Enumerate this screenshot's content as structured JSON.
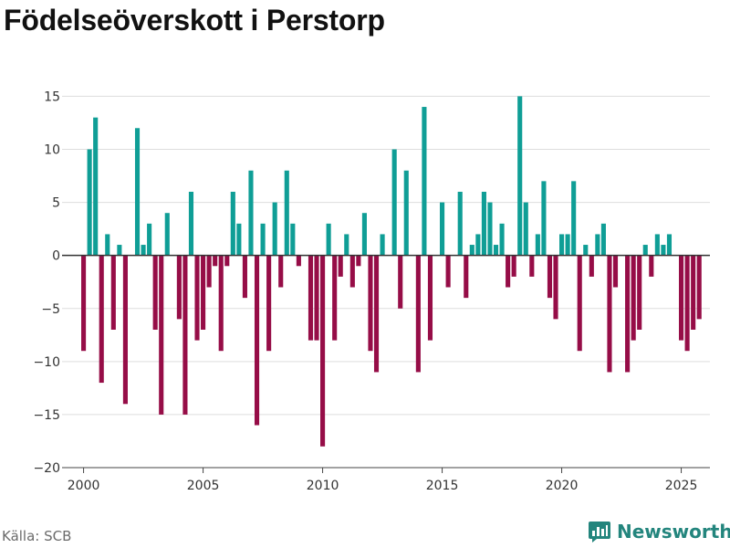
{
  "title": "Födelseöverskott i Perstorp",
  "source": "Källa: SCB",
  "brand": {
    "name": "Newsworthy",
    "icon": "bar-chart-speech-icon"
  },
  "colors": {
    "positive": "#0f9e96",
    "negative": "#960d47",
    "grid": "#dddddd",
    "zero_line": "#333333",
    "brand": "#23857d"
  },
  "chart_data": {
    "type": "bar",
    "title": "Födelseöverskott i Perstorp",
    "xlabel": "",
    "ylabel": "",
    "xlim": [
      1999.1,
      2026.2
    ],
    "ylim": [
      -20,
      16.5
    ],
    "yticks": [
      15,
      10,
      5,
      0,
      -5,
      -10,
      -15,
      -20
    ],
    "xticks": [
      2000,
      2005,
      2010,
      2015,
      2020,
      2025
    ],
    "grid": true,
    "series": [
      {
        "name": "Födelseöverskott",
        "start_year": 2000,
        "periods_per_year": 4,
        "values": [
          -9,
          10,
          13,
          -12,
          2,
          -7,
          1,
          -14,
          0,
          12,
          1,
          3,
          -7,
          -15,
          4,
          0,
          -6,
          -15,
          6,
          -8,
          -7,
          -3,
          -1,
          -9,
          -1,
          6,
          3,
          -4,
          8,
          -16,
          3,
          -9,
          5,
          -3,
          8,
          3,
          -1,
          0,
          -8,
          -8,
          -18,
          3,
          -8,
          -2,
          2,
          -3,
          -1,
          4,
          -9,
          -11,
          2,
          0,
          10,
          -5,
          8,
          0,
          -11,
          14,
          -8,
          0,
          5,
          -3,
          0,
          6,
          -4,
          1,
          2,
          6,
          5,
          1,
          3,
          -3,
          -2,
          15,
          5,
          -2,
          2,
          7,
          -4,
          -6,
          2,
          2,
          7,
          -9,
          1,
          -2,
          2,
          3,
          -11,
          -3,
          0,
          -11,
          -8,
          -7,
          1,
          -2,
          2,
          1,
          2,
          0,
          -8,
          -9,
          -7,
          -6
        ]
      }
    ]
  }
}
